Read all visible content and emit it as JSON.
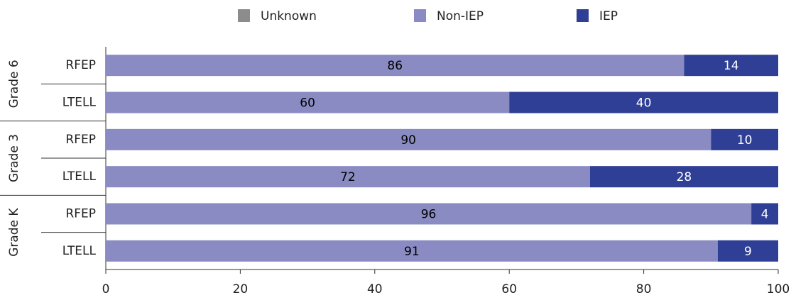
{
  "chart_data": {
    "type": "stacked-bar-horizontal",
    "groups": [
      "Grade 6",
      "Grade 3",
      "Grade K"
    ],
    "categories": [
      "RFEP",
      "LTELL",
      "RFEP",
      "LTELL",
      "RFEP",
      "LTELL"
    ],
    "series": [
      {
        "name": "Unknown",
        "color": "#8c8c8c",
        "text_color": "#000000",
        "values": [
          0,
          0,
          0,
          0,
          0,
          0
        ]
      },
      {
        "name": "Non-IEP",
        "color": "#8a8bc3",
        "text_color": "#000000",
        "values": [
          86,
          60,
          90,
          72,
          96,
          91
        ]
      },
      {
        "name": "IEP",
        "color": "#2f3f95",
        "text_color": "#ffffff",
        "values": [
          14,
          40,
          10,
          28,
          4,
          9
        ]
      }
    ],
    "xlim": [
      0,
      100
    ],
    "xticks": [
      0,
      20,
      40,
      60,
      80,
      100
    ],
    "legend": "top"
  }
}
